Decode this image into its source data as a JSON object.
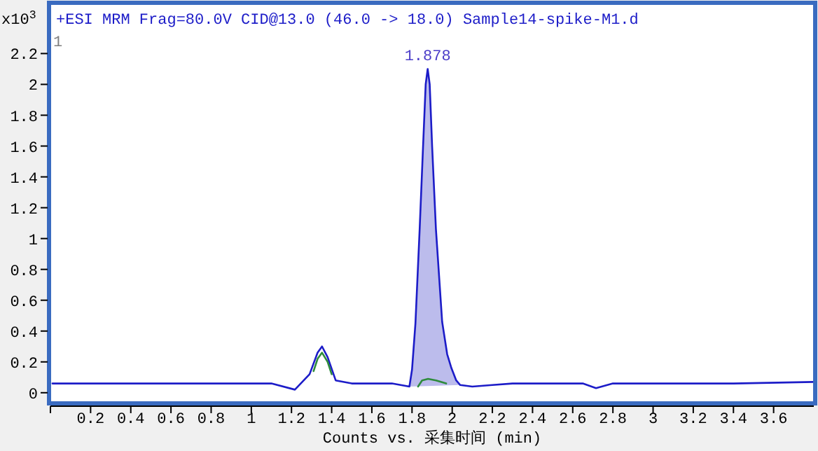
{
  "chart_data": {
    "type": "line",
    "title": "+ESI MRM Frag=80.0V CID@13.0 (46.0 -> 18.0) Sample14-spike-M1.d",
    "xlabel": "Counts vs.  采集时间 (min)",
    "ylabel": "x10$^{3}$",
    "annotations": [
      "1",
      {
        "text": "1.878",
        "x": 1.878,
        "y": 2.1
      }
    ],
    "xlim": [
      0,
      3.8
    ],
    "ylim": [
      -0.06,
      2.52
    ],
    "xticks": [
      {
        "value": 0,
        "label": null
      },
      0.2,
      0.4,
      0.6,
      0.8,
      1,
      1.2,
      1.4,
      1.6,
      1.8,
      2,
      2.2,
      2.4,
      2.6,
      2.8,
      3,
      3.2,
      3.4,
      3.6
    ],
    "yticks": [
      0,
      0.2,
      0.4,
      0.6,
      0.8,
      1,
      1.2,
      1.4,
      1.6,
      1.8,
      2,
      2.2
    ],
    "series": [
      {
        "type": "area",
        "color": "#bcbcec",
        "x": [
          1.787,
          1.8,
          1.817,
          1.838,
          1.855,
          1.868,
          1.878,
          1.888,
          1.9,
          1.919,
          1.95,
          1.975,
          1.996,
          2.02,
          2.04
        ],
        "values": [
          0.04,
          0.15,
          0.45,
          1.06,
          1.6,
          2.0,
          2.1,
          2.0,
          1.6,
          1.06,
          0.46,
          0.25,
          0.16,
          0.08,
          0.05
        ]
      },
      {
        "color": "#1c1cc8",
        "x": [
          0.01,
          0.5,
          1.0,
          1.1,
          1.217,
          1.29,
          1.33,
          1.352,
          1.38,
          1.42,
          1.5,
          1.7,
          1.787,
          1.8,
          1.817,
          1.838,
          1.855,
          1.868,
          1.878,
          1.888,
          1.9,
          1.919,
          1.95,
          1.975,
          1.996,
          2.02,
          2.04,
          2.1,
          2.2,
          2.3,
          2.5,
          2.65,
          2.716,
          2.8,
          3.0,
          3.4,
          3.8
        ],
        "values": [
          0.06,
          0.06,
          0.06,
          0.06,
          0.02,
          0.12,
          0.26,
          0.3,
          0.23,
          0.08,
          0.06,
          0.06,
          0.04,
          0.15,
          0.45,
          1.06,
          1.6,
          2.0,
          2.1,
          2.0,
          1.6,
          1.06,
          0.46,
          0.25,
          0.16,
          0.08,
          0.05,
          0.04,
          0.05,
          0.06,
          0.06,
          0.06,
          0.03,
          0.06,
          0.06,
          0.06,
          0.07
        ]
      },
      {
        "color": "#2e8b3c",
        "x": [
          1.31,
          1.33,
          1.352,
          1.38,
          1.4
        ],
        "values": [
          0.14,
          0.22,
          0.26,
          0.2,
          0.12
        ]
      },
      {
        "color": "#2e8b3c",
        "x": [
          1.83,
          1.85,
          1.88,
          1.92,
          1.97
        ],
        "values": [
          0.04,
          0.08,
          0.09,
          0.08,
          0.06
        ]
      }
    ]
  }
}
